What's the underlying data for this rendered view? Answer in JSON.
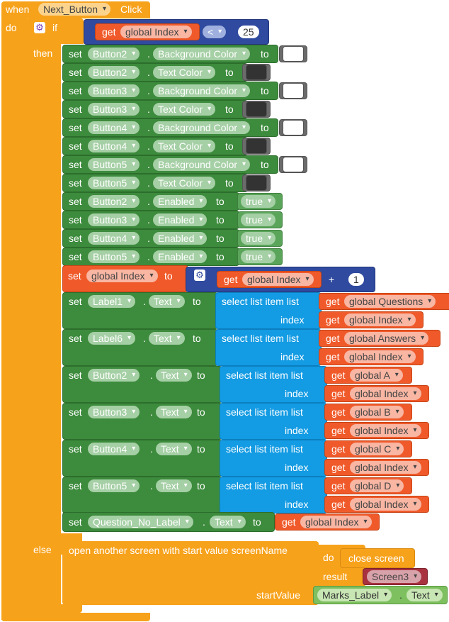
{
  "event": {
    "when": "when",
    "component": "Next_Button",
    "event": "Click",
    "do": "do"
  },
  "if_block": {
    "if": "if",
    "then": "then",
    "else": "else"
  },
  "condition": {
    "get": "get",
    "var": "global Index",
    "op": "<",
    "value": "25"
  },
  "color_rows": [
    {
      "set": "set",
      "comp": "Button2",
      "prop": "Background Color",
      "to": "to",
      "swatch": "#ffffff"
    },
    {
      "set": "set",
      "comp": "Button2",
      "prop": "Text Color",
      "to": "to",
      "swatch": "#333333"
    },
    {
      "set": "set",
      "comp": "Button3",
      "prop": "Background Color",
      "to": "to",
      "swatch": "#ffffff"
    },
    {
      "set": "set",
      "comp": "Button3",
      "prop": "Text Color",
      "to": "to",
      "swatch": "#333333"
    },
    {
      "set": "set",
      "comp": "Button4",
      "prop": "Background Color",
      "to": "to",
      "swatch": "#ffffff"
    },
    {
      "set": "set",
      "comp": "Button4",
      "prop": "Text Color",
      "to": "to",
      "swatch": "#333333"
    },
    {
      "set": "set",
      "comp": "Button5",
      "prop": "Background Color",
      "to": "to",
      "swatch": "#ffffff"
    },
    {
      "set": "set",
      "comp": "Button5",
      "prop": "Text Color",
      "to": "to",
      "swatch": "#333333"
    }
  ],
  "enabled_rows": [
    {
      "set": "set",
      "comp": "Button2",
      "prop": "Enabled",
      "to": "to",
      "value": "true"
    },
    {
      "set": "set",
      "comp": "Button3",
      "prop": "Enabled",
      "to": "to",
      "value": "true"
    },
    {
      "set": "set",
      "comp": "Button4",
      "prop": "Enabled",
      "to": "to",
      "value": "true"
    },
    {
      "set": "set",
      "comp": "Button5",
      "prop": "Enabled",
      "to": "to",
      "value": "true"
    }
  ],
  "increment": {
    "set": "set",
    "var": "global Index",
    "to": "to",
    "get": "get",
    "get_var": "global Index",
    "op": "+",
    "value": "1"
  },
  "select_rows": [
    {
      "set": "set",
      "comp": "Label1",
      "prop": "Text",
      "to": "to",
      "select": "select list item  list",
      "index": "index",
      "get": "get",
      "list_var": "global Questions",
      "index_var": "global Index"
    },
    {
      "set": "set",
      "comp": "Label6",
      "prop": "Text",
      "to": "to",
      "select": "select list item  list",
      "index": "index",
      "get": "get",
      "list_var": "global Answers",
      "index_var": "global Index"
    },
    {
      "set": "set",
      "comp": "Button2",
      "prop": "Text",
      "to": "to",
      "select": "select list item  list",
      "index": "index",
      "get": "get",
      "list_var": "global A",
      "index_var": "global Index"
    },
    {
      "set": "set",
      "comp": "Button3",
      "prop": "Text",
      "to": "to",
      "select": "select list item  list",
      "index": "index",
      "get": "get",
      "list_var": "global B",
      "index_var": "global Index"
    },
    {
      "set": "set",
      "comp": "Button4",
      "prop": "Text",
      "to": "to",
      "select": "select list item  list",
      "index": "index",
      "get": "get",
      "list_var": "global C",
      "index_var": "global Index"
    },
    {
      "set": "set",
      "comp": "Button5",
      "prop": "Text",
      "to": "to",
      "select": "select list item  list",
      "index": "index",
      "get": "get",
      "list_var": "global D",
      "index_var": "global Index"
    }
  ],
  "question_no": {
    "set": "set",
    "comp": "Question_No_Label",
    "prop": "Text",
    "to": "to",
    "get": "get",
    "var": "global Index"
  },
  "else_block": {
    "open_screen": "open another screen with start value  screenName",
    "do": "do",
    "close_screen": "close screen",
    "result": "result",
    "screen": "Screen3",
    "start_value": "startValue",
    "comp": "Marks_Label",
    "prop": "Text"
  },
  "colors": {
    "control": "#f7a21b",
    "components": "#3d8b3d",
    "lists": "#139be3",
    "variables": "#f05a2a",
    "math": "#2f4a9e",
    "text": "#a8323f"
  }
}
